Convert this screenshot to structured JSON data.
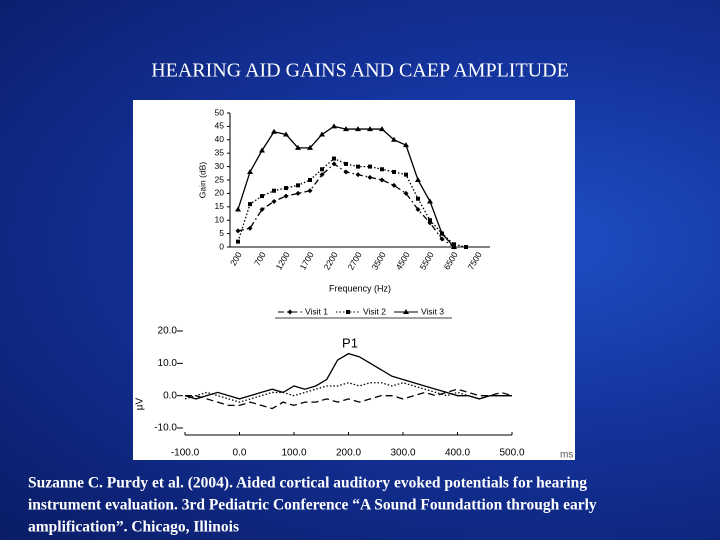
{
  "title": "HEARING AID GAINS  AND CAEP AMPLITUDE",
  "caption": [
    "Suzanne C. Purdy et al. (2004). Aided cortical auditory evoked potentials for hearing",
    "instrument evaluation. 3rd Pediatric Conference “A Sound Foundattion through early",
    "amplification”. Chicago, Illinois"
  ],
  "chart_data": [
    {
      "type": "line",
      "ylabel": "Gain (dB)",
      "xlabel": "Frequency (Hz)",
      "categories": [
        "200",
        null,
        "700",
        null,
        "1200",
        null,
        "1700",
        null,
        "2200",
        null,
        "2700",
        null,
        "3500",
        null,
        "4500",
        null,
        "5500",
        null,
        "6500",
        null,
        "7500"
      ],
      "ylim": [
        0,
        50
      ],
      "yticks": [
        0,
        5,
        10,
        15,
        20,
        25,
        30,
        35,
        40,
        45,
        50
      ],
      "series": [
        {
          "name": "Visit 1",
          "color": "#000000",
          "marker": "diamond",
          "dash": "dashdot",
          "values": [
            6,
            7,
            14,
            17,
            19,
            20,
            21,
            27,
            31,
            28,
            27,
            26,
            25,
            23,
            20,
            14,
            9,
            3,
            0,
            null,
            null
          ]
        },
        {
          "name": "Visit 2",
          "color": "#000000",
          "marker": "square",
          "dash": "dotted",
          "values": [
            2,
            16,
            19,
            21,
            22,
            23,
            25,
            29,
            33,
            31,
            30,
            30,
            29,
            28,
            27,
            18,
            10,
            5,
            1,
            0,
            null
          ]
        },
        {
          "name": "Visit 3",
          "color": "#000000",
          "marker": "triangle",
          "dash": "solid",
          "values": [
            14,
            28,
            36,
            43,
            42,
            37,
            37,
            42,
            45,
            44,
            44,
            44,
            44,
            40,
            38,
            25,
            17,
            5,
            0,
            null,
            null
          ]
        }
      ]
    },
    {
      "type": "line",
      "ylabel": "µV",
      "xlabel": "ms",
      "annotation": "P1",
      "x": [
        -100,
        -80,
        -60,
        -40,
        -20,
        0,
        20,
        40,
        60,
        80,
        100,
        120,
        140,
        160,
        180,
        200,
        220,
        240,
        260,
        280,
        300,
        320,
        340,
        360,
        380,
        400,
        420,
        440,
        460,
        480,
        500
      ],
      "xlim": [
        -100,
        500
      ],
      "xticks": [
        {
          "value": -100,
          "label": "-100.0"
        },
        {
          "value": 0,
          "label": "0.0"
        },
        {
          "value": 100,
          "label": "100.0"
        },
        {
          "value": 200,
          "label": "200.0"
        },
        {
          "value": 300,
          "label": "300.0"
        },
        {
          "value": 400,
          "label": "400.0"
        },
        {
          "value": 500,
          "label": "500.0"
        }
      ],
      "ylim": [
        -10,
        20
      ],
      "yticks": [
        {
          "value": -10,
          "label": "-10.0"
        },
        {
          "value": 0,
          "label": "0.0"
        },
        {
          "value": 10,
          "label": "10.0"
        },
        {
          "value": 20,
          "label": "20.0"
        }
      ],
      "series": [
        {
          "color": "#000000",
          "dash": "solid",
          "values": [
            0,
            -1,
            0,
            1,
            0,
            -1,
            0,
            1,
            2,
            1,
            3,
            2,
            3,
            5,
            11,
            13,
            12,
            10,
            8,
            6,
            5,
            4,
            3,
            2,
            1,
            0,
            0,
            -1,
            0,
            0,
            0
          ]
        },
        {
          "color": "#000000",
          "dash": "dotted",
          "values": [
            -1,
            0,
            1,
            0,
            -1,
            -2,
            -1,
            0,
            1,
            1,
            0,
            1,
            2,
            3,
            3,
            4,
            3,
            4,
            4,
            3,
            4,
            3,
            2,
            1,
            0,
            1,
            0,
            -1,
            0,
            0,
            0
          ]
        },
        {
          "color": "#000000",
          "dash": "dashed",
          "values": [
            0,
            0,
            -1,
            -2,
            -3,
            -3,
            -2,
            -3,
            -4,
            -2,
            -3,
            -2,
            -2,
            -1,
            -2,
            -1,
            -2,
            -1,
            0,
            0,
            -1,
            0,
            1,
            0,
            1,
            2,
            1,
            0,
            0,
            1,
            0
          ]
        }
      ]
    }
  ]
}
